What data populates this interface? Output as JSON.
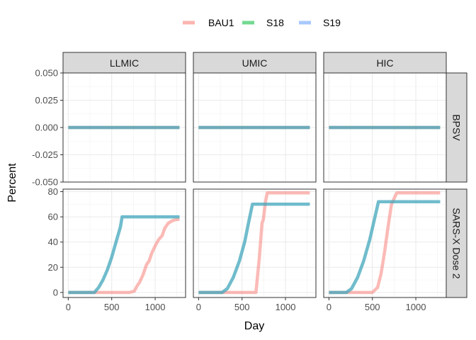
{
  "chart_data": {
    "type": "line",
    "title": "",
    "xlabel": "Day",
    "ylabel": "Percent",
    "legend_position": "top",
    "series_meta": [
      {
        "name": "BAU1",
        "color": "#F8766D"
      },
      {
        "name": "S18",
        "color": "#00BA38"
      },
      {
        "name": "S19",
        "color": "#619CFF"
      }
    ],
    "columns": [
      "LLMIC",
      "UMIC",
      "HIC"
    ],
    "rows": [
      "BPSV",
      "SARS-X Dose 2"
    ],
    "xlim": [
      -60,
      1350
    ],
    "x_ticks": [
      0,
      500,
      1000
    ],
    "row_axes": [
      {
        "ylim": [
          -0.05,
          0.05
        ],
        "ticks": [
          -0.05,
          -0.025,
          0,
          0.025,
          0.05
        ],
        "tick_labels": [
          "-0.050",
          "-0.025",
          "0.000",
          "0.025",
          "0.050"
        ]
      },
      {
        "ylim": [
          -4,
          82
        ],
        "ticks": [
          0,
          20,
          40,
          60,
          80
        ],
        "tick_labels": [
          "0",
          "20",
          "40",
          "60",
          "80"
        ]
      }
    ],
    "panels": [
      {
        "row": "BPSV",
        "column": "LLMIC",
        "series": [
          {
            "name": "BAU1",
            "x": [
              0,
              1280
            ],
            "y": [
              0,
              0
            ]
          },
          {
            "name": "S18",
            "x": [
              0,
              1280
            ],
            "y": [
              0,
              0
            ]
          },
          {
            "name": "S19",
            "x": [
              0,
              1280
            ],
            "y": [
              0,
              0
            ]
          }
        ]
      },
      {
        "row": "BPSV",
        "column": "UMIC",
        "series": [
          {
            "name": "BAU1",
            "x": [
              0,
              1280
            ],
            "y": [
              0,
              0
            ]
          },
          {
            "name": "S18",
            "x": [
              0,
              1280
            ],
            "y": [
              0,
              0
            ]
          },
          {
            "name": "S19",
            "x": [
              0,
              1280
            ],
            "y": [
              0,
              0
            ]
          }
        ]
      },
      {
        "row": "BPSV",
        "column": "HIC",
        "series": [
          {
            "name": "BAU1",
            "x": [
              0,
              1280
            ],
            "y": [
              0,
              0
            ]
          },
          {
            "name": "S18",
            "x": [
              0,
              1280
            ],
            "y": [
              0,
              0
            ]
          },
          {
            "name": "S19",
            "x": [
              0,
              1280
            ],
            "y": [
              0,
              0
            ]
          }
        ]
      },
      {
        "row": "SARS-X Dose 2",
        "column": "LLMIC",
        "series": [
          {
            "name": "BAU1",
            "x": [
              0,
              700,
              760,
              790,
              820,
              860,
              900,
              930,
              960,
              1000,
              1040,
              1080,
              1110,
              1150,
              1200,
              1250,
              1280
            ],
            "y": [
              0,
              0,
              1,
              5,
              8,
              14,
              22,
              25,
              31,
              37,
              42,
              45,
              51,
              55,
              57,
              58,
              58
            ]
          },
          {
            "name": "S18",
            "x": [
              0,
              300,
              350,
              400,
              450,
              500,
              550,
              600,
              620,
              1280
            ],
            "y": [
              0,
              0,
              4,
              10,
              18,
              28,
              40,
              52,
              60,
              60
            ]
          },
          {
            "name": "S19",
            "x": [
              0,
              300,
              350,
              400,
              450,
              500,
              550,
              600,
              620,
              1280
            ],
            "y": [
              0,
              0,
              4,
              10,
              18,
              28,
              40,
              52,
              60,
              60
            ]
          }
        ]
      },
      {
        "row": "SARS-X Dose 2",
        "column": "UMIC",
        "series": [
          {
            "name": "BAU1",
            "x": [
              0,
              660,
              700,
              730,
              745,
              770,
              790,
              1280
            ],
            "y": [
              0,
              0,
              28,
              55,
              58,
              72,
              79,
              79
            ]
          },
          {
            "name": "S18",
            "x": [
              0,
              270,
              330,
              400,
              470,
              530,
              580,
              620,
              1280
            ],
            "y": [
              0,
              0,
              3,
              12,
              25,
              40,
              57,
              70,
              70
            ]
          },
          {
            "name": "S19",
            "x": [
              0,
              270,
              330,
              400,
              470,
              530,
              580,
              620,
              1280
            ],
            "y": [
              0,
              0,
              3,
              12,
              25,
              40,
              57,
              70,
              70
            ]
          }
        ]
      },
      {
        "row": "SARS-X Dose 2",
        "column": "HIC",
        "series": [
          {
            "name": "BAU1",
            "x": [
              0,
              500,
              560,
              600,
              640,
              680,
              720,
              780,
              1280
            ],
            "y": [
              0,
              0,
              4,
              15,
              32,
              52,
              70,
              79,
              79
            ]
          },
          {
            "name": "S18",
            "x": [
              0,
              200,
              260,
              330,
              400,
              470,
              530,
              570,
              1280
            ],
            "y": [
              0,
              0,
              3,
              12,
              25,
              42,
              60,
              72,
              72
            ]
          },
          {
            "name": "S19",
            "x": [
              0,
              200,
              260,
              330,
              400,
              470,
              530,
              570,
              1280
            ],
            "y": [
              0,
              0,
              3,
              12,
              25,
              42,
              60,
              72,
              72
            ]
          }
        ]
      }
    ]
  }
}
